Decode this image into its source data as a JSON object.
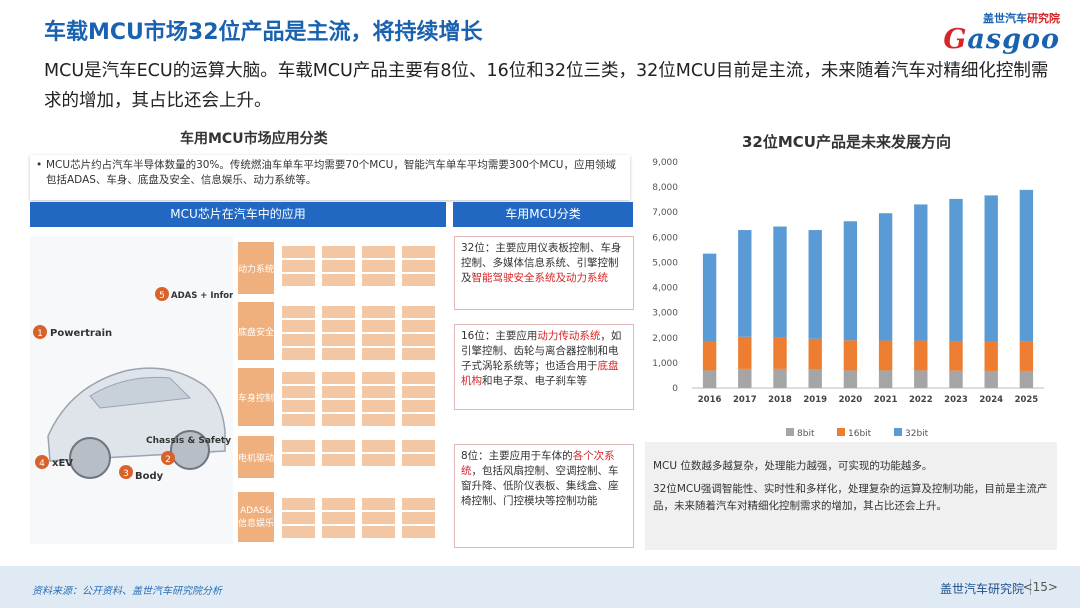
{
  "header": {
    "title": "车载MCU市场32位产品是主流，将持续增长",
    "subtitle": "MCU是汽车ECU的运算大脑。车载MCU产品主要有8位、16位和32位三类，32位MCU目前是主流，未来随着汽车对精细化控制需求的增加，其占比还会上升。"
  },
  "logo": {
    "brand_cn": "盖世汽车",
    "brand_tag": "研究院",
    "wordmark_accent": "G",
    "wordmark_rest": "asgoo"
  },
  "left": {
    "heading": "车用MCU市场应用分类",
    "bullet": "MCU芯片约占汽车半导体数量的30%。传统燃油车单车平均需要70个MCU，智能汽车单车平均需要300个MCU，应用领域包括ADAS、车身、底盘及安全、信息娱乐、动力系统等。",
    "bar_left": "MCU芯片在汽车中的应用",
    "bar_right": "车用MCU分类",
    "illustration_labels": [
      "Powertrain",
      "ADAS + Information",
      "xEV",
      "Body",
      "Chassis & Safety"
    ],
    "illustration_numbers": [
      "1",
      "5",
      "4",
      "3",
      "2"
    ],
    "grid_categories": [
      "动力系统",
      "底盘安全",
      "车身控制",
      "电机驱动",
      "ADAS&信息娱乐"
    ],
    "classifications": [
      {
        "prefix": "32位：主要应用仪表板控制、车身控制、多媒体信息系统、引擎控制及",
        "highlight": "智能驾驶安全系统及动力系统",
        "suffix": ""
      },
      {
        "prefix": "16位：主要应用",
        "highlight": "动力传动系统",
        "suffix": "，如引擎控制、齿轮与离合器控制和电子式涡轮系统等；也适合用于",
        "highlight2": "底盘机构",
        "suffix2": "和电子泵、电子刹车等"
      },
      {
        "prefix": "8位：主要应用于车体的",
        "highlight": "各个次系统",
        "suffix": "，包括风扇控制、空调控制、车窗升降、低阶仪表板、集线盒、座椅控制、门控模块等控制功能"
      }
    ]
  },
  "chart_data": {
    "type": "bar",
    "stacked": true,
    "title": "32位MCU产品是未来发展方向",
    "categories": [
      "2016",
      "2017",
      "2018",
      "2019",
      "2020",
      "2021",
      "2022",
      "2023",
      "2024",
      "2025"
    ],
    "series": [
      {
        "name": "8bit",
        "color": "#a5a5a5",
        "values": [
          700,
          760,
          760,
          740,
          700,
          700,
          700,
          690,
          680,
          680
        ]
      },
      {
        "name": "16bit",
        "color": "#ed7d31",
        "values": [
          1150,
          1280,
          1270,
          1220,
          1200,
          1190,
          1190,
          1180,
          1170,
          1160
        ]
      },
      {
        "name": "32bit",
        "color": "#5b9bd5",
        "values": [
          3500,
          4250,
          4400,
          4330,
          4740,
          5070,
          5420,
          5660,
          5820,
          6050
        ]
      }
    ],
    "ylim": [
      0,
      9000
    ],
    "yticks": [
      "0",
      "1,000",
      "2,000",
      "3,000",
      "4,000",
      "5,000",
      "6,000",
      "7,000",
      "8,000",
      "9,000"
    ],
    "legend_position": "bottom",
    "grid": false
  },
  "notes": [
    "MCU 位数越多越复杂，处理能力越强，可实现的功能越多。",
    "32位MCU强调智能性、实时性和多样化，处理复杂的运算及控制功能，目前是主流产品，未来随着汽车对精细化控制需求的增加，其占比还会上升。"
  ],
  "footer": {
    "source": "资料来源：公开资料、盖世汽车研究院分析",
    "org": "盖世汽车研究院",
    "page": "<15>"
  }
}
